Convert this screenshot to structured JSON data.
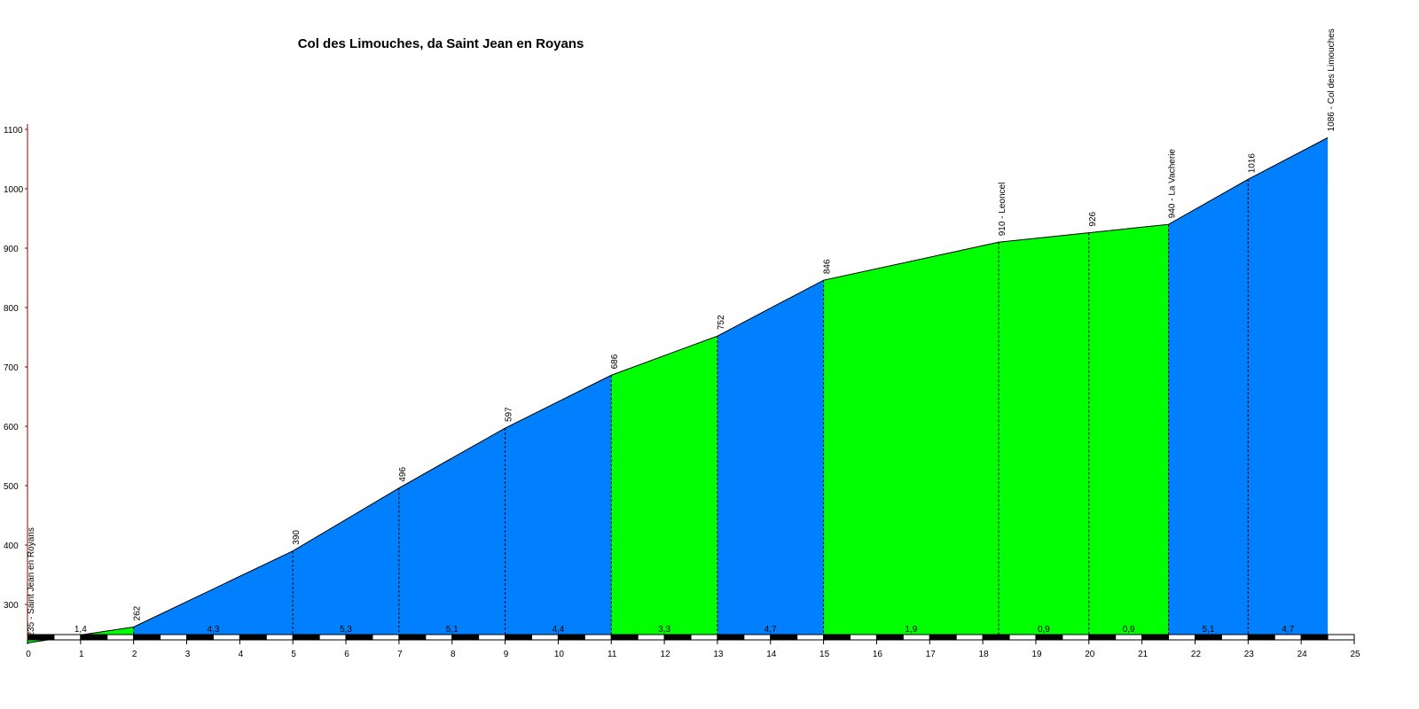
{
  "chart_data": {
    "type": "area",
    "title": "Col des Limouches, da Saint Jean en Royans",
    "xlabel": "",
    "ylabel": "",
    "xlim": [
      0,
      25
    ],
    "ylim": [
      220,
      1100
    ],
    "x_ticks": [
      0,
      1,
      2,
      3,
      4,
      5,
      6,
      7,
      8,
      9,
      10,
      11,
      12,
      13,
      14,
      15,
      16,
      17,
      18,
      19,
      20,
      21,
      22,
      23,
      24,
      25
    ],
    "y_ticks": [
      300,
      400,
      500,
      600,
      700,
      800,
      900,
      1000,
      1100
    ],
    "points": [
      {
        "km": 0,
        "alt": 235,
        "label": "235 - Saint Jean en Royans"
      },
      {
        "km": 2,
        "alt": 262,
        "label": "262"
      },
      {
        "km": 5,
        "alt": 390,
        "label": "390"
      },
      {
        "km": 7,
        "alt": 496,
        "label": "496"
      },
      {
        "km": 9,
        "alt": 597,
        "label": "597"
      },
      {
        "km": 11,
        "alt": 686,
        "label": "686"
      },
      {
        "km": 13,
        "alt": 752,
        "label": "752"
      },
      {
        "km": 15,
        "alt": 846,
        "label": "846"
      },
      {
        "km": 18.3,
        "alt": 910,
        "label": "910 - Leoncel"
      },
      {
        "km": 20,
        "alt": 926,
        "label": "926"
      },
      {
        "km": 21.5,
        "alt": 940,
        "label": "940 - La Vacherie"
      },
      {
        "km": 23,
        "alt": 1016,
        "label": "1016"
      },
      {
        "km": 24.5,
        "alt": 1086,
        "label": "1086 - Col des Limouches"
      }
    ],
    "segments": [
      {
        "gradient": "1,4",
        "color": "#00ff00"
      },
      {
        "gradient": "4,3",
        "color": "#0080ff"
      },
      {
        "gradient": "5,3",
        "color": "#0080ff"
      },
      {
        "gradient": "5,1",
        "color": "#0080ff"
      },
      {
        "gradient": "4,4",
        "color": "#0080ff"
      },
      {
        "gradient": "3,3",
        "color": "#00ff00"
      },
      {
        "gradient": "4,7",
        "color": "#0080ff"
      },
      {
        "gradient": "1,9",
        "color": "#00ff00"
      },
      {
        "gradient": "0,9",
        "color": "#00ff00"
      },
      {
        "gradient": "0,9",
        "color": "#00ff00"
      },
      {
        "gradient": "5,1",
        "color": "#0080ff"
      },
      {
        "gradient": "4,7",
        "color": "#0080ff"
      }
    ],
    "colors": {
      "low_gradient": "#00ff00",
      "high_gradient": "#0080ff",
      "axis": "#8b0000"
    }
  }
}
